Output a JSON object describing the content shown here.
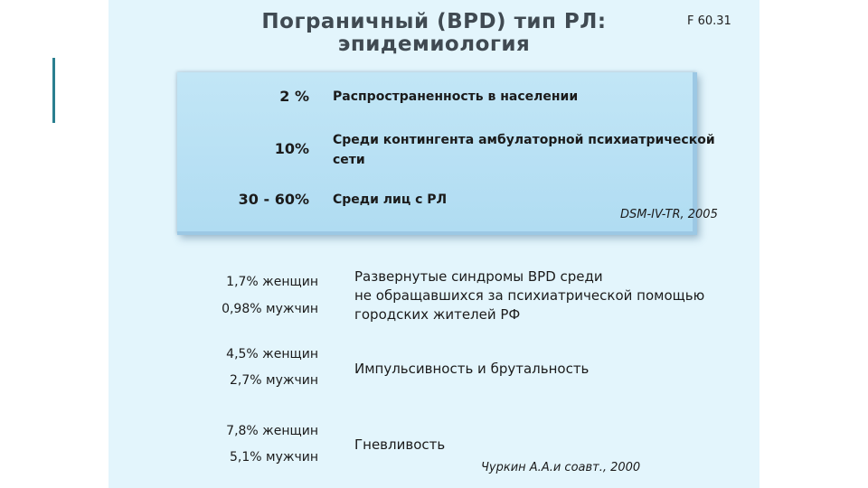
{
  "title": {
    "line1": "Пограничный (BPD) тип РЛ:",
    "line2": "эпидемиология"
  },
  "code": "F 60.31",
  "box": {
    "rows": [
      {
        "pct": "2 %",
        "desc": "Распространенность в населении"
      },
      {
        "pct": "10%",
        "desc_line1": "Среди контингента амбулаторной психиатрической",
        "desc_line2": "сети"
      },
      {
        "pct": "30 - 60%",
        "desc": "Среди лиц с РЛ"
      }
    ],
    "source": "DSM-IV-TR, 2005"
  },
  "stats": [
    {
      "women": "1,7% женщин",
      "men": "0,98% мужчин",
      "desc_lines": [
        "Развернутые синдромы BPD среди",
        "не обращавшихся за психиатрической помощью",
        "городских жителей РФ"
      ]
    },
    {
      "women": "4,5% женщин",
      "men": "2,7% мужчин",
      "desc": "Импульсивность и брутальность"
    },
    {
      "women": "7,8% женщин",
      "men": "5,1% мужчин",
      "desc": "Гневливость"
    }
  ],
  "source2": "Чуркин А.А.и соавт., 2000",
  "colors": {
    "slide_bg": "#e3f5fc",
    "box_bg": "#b8e0f4",
    "title": "#404a52",
    "accent_bar": "#2a7f8f"
  }
}
